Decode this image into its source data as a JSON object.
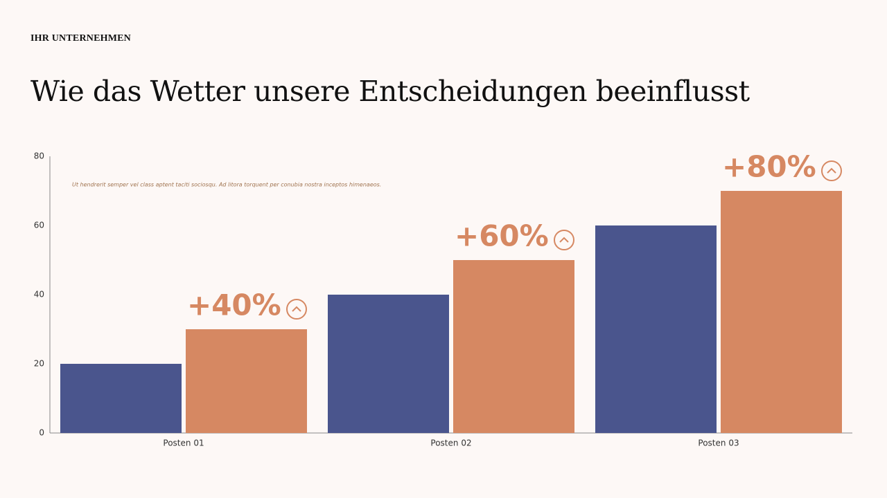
{
  "header": {
    "company": "IHR UNTERNEHMEN",
    "title": "Wie das Wetter unsere Entscheidungen beeinflusst"
  },
  "chart_data": {
    "type": "bar",
    "note": "Ut hendrerit semper vel class aptent taciti sociosqu. Ad litora torquent per conubia nostra inceptos himenaeos.",
    "categories": [
      "Posten 01",
      "Posten 02",
      "Posten 03"
    ],
    "series": [
      {
        "color": "#4a558d",
        "values": [
          20,
          40,
          60
        ]
      },
      {
        "color": "#d68862",
        "values": [
          30,
          50,
          70
        ]
      }
    ],
    "annotations": [
      "+40%",
      "+60%",
      "+80%"
    ],
    "ylim": [
      0,
      80
    ],
    "yticks": [
      0,
      20,
      40,
      60,
      80
    ],
    "grid": false
  }
}
